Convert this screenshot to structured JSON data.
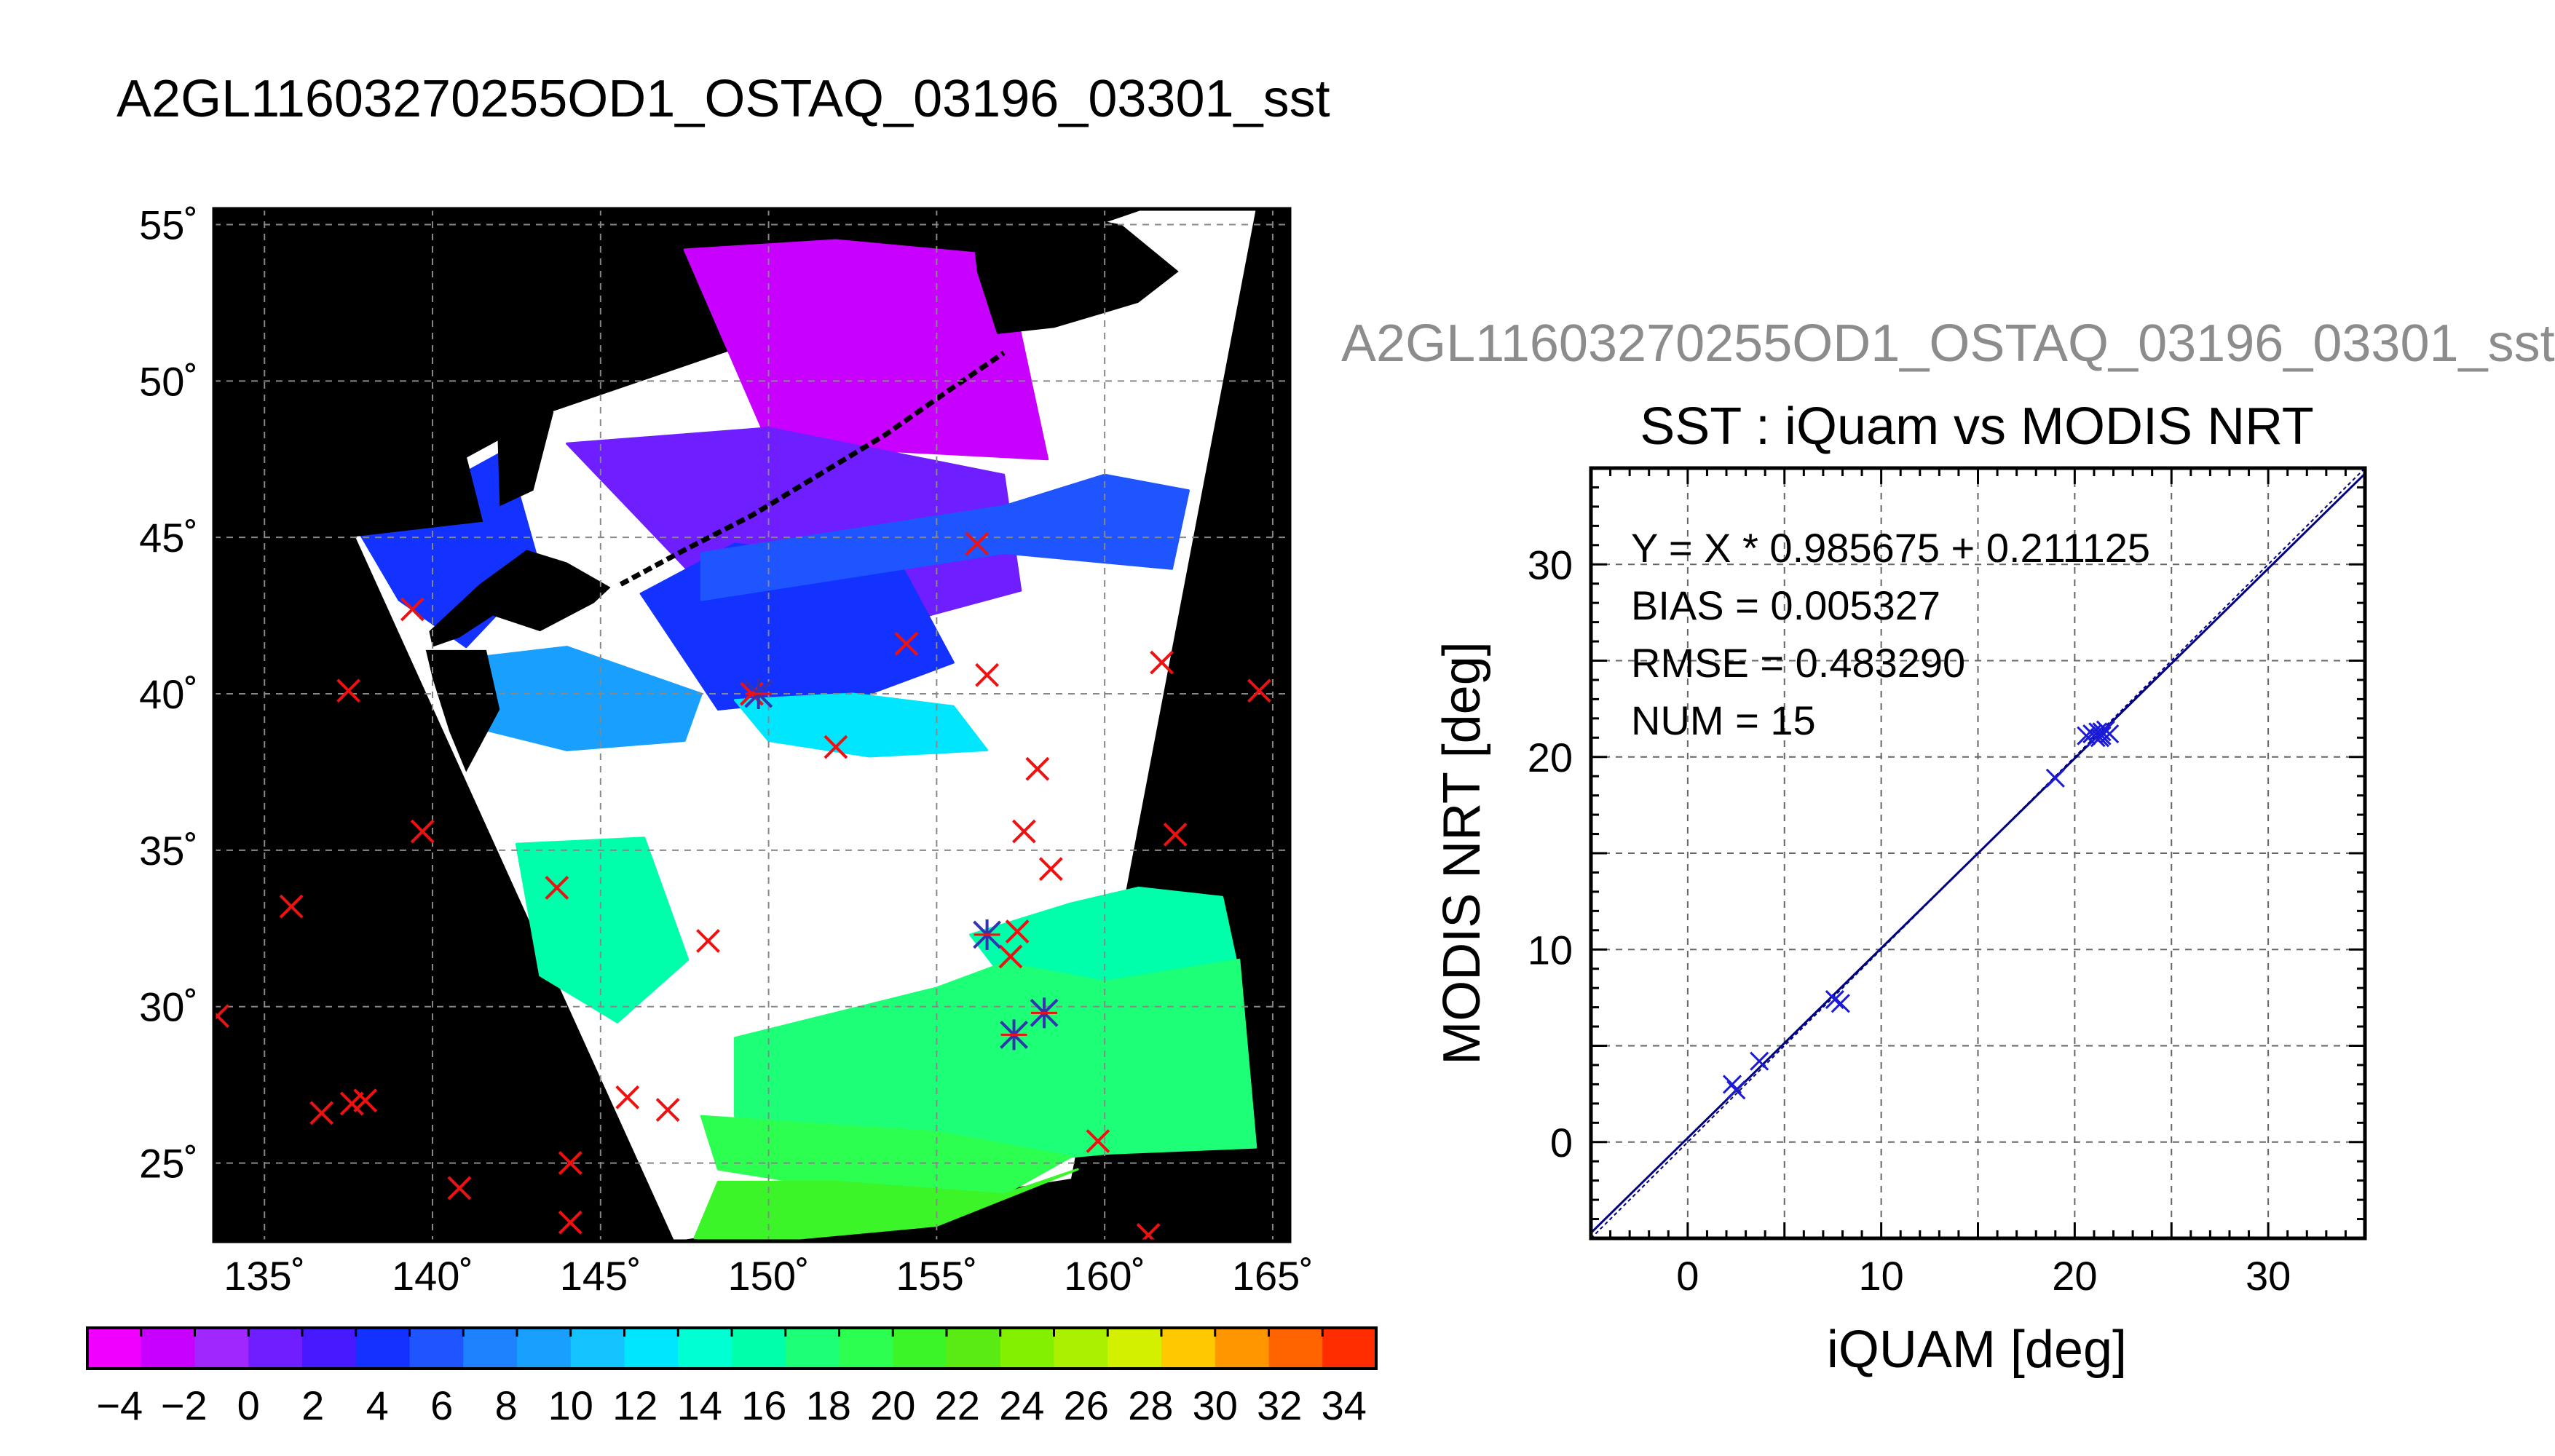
{
  "page": {
    "title": "A2GL11603270255OD1_OSTAQ_03196_03301_sst",
    "title_gray": "A2GL11603270255OD1_OSTAQ_03196_03301_sst"
  },
  "chart_data": [
    {
      "type": "map",
      "lon_range": [
        133.5,
        165.5
      ],
      "lat_range": [
        22.5,
        55.5
      ],
      "lon_ticks": [
        135,
        140,
        145,
        150,
        155,
        160,
        165
      ],
      "lat_ticks": [
        25,
        30,
        35,
        40,
        45,
        50,
        55
      ],
      "lon_tick_labels": [
        "135˚",
        "140˚",
        "145˚",
        "150˚",
        "155˚",
        "160˚",
        "165˚"
      ],
      "lat_tick_labels": [
        "25˚",
        "30˚",
        "35˚",
        "40˚",
        "45˚",
        "50˚",
        "55˚"
      ],
      "grid": true,
      "background": "#000000",
      "swath": {
        "lon": [
          137.5,
          143.5,
          161.2,
          164.5,
          159.0,
          147.2,
          137.5
        ],
        "lat": [
          45.5,
          49.0,
          55.5,
          55.5,
          24.5,
          22.5,
          45.5
        ]
      },
      "sst_regions": [
        {
          "value": -3,
          "lon": [
            147.5,
            152.0,
            157.0,
            158.3,
            153.0,
            150.0
          ],
          "lat": [
            54.2,
            54.5,
            54.0,
            47.5,
            47.8,
            48.0
          ]
        },
        {
          "value": 2,
          "lon": [
            144.0,
            150.0,
            157.0,
            157.5,
            153.0,
            148.0
          ],
          "lat": [
            48.0,
            48.5,
            47.0,
            43.3,
            42.0,
            43.5
          ]
        },
        {
          "value": 5,
          "lon": [
            137.8,
            142.2,
            143.2,
            141.0,
            139.0
          ],
          "lat": [
            45.2,
            47.8,
            44.0,
            41.5,
            43.0
          ]
        },
        {
          "value": 5,
          "lon": [
            146.2,
            149.0,
            154.0,
            155.5,
            153.0,
            148.5
          ],
          "lat": [
            43.2,
            44.8,
            44.0,
            41.0,
            40.0,
            39.5
          ]
        },
        {
          "value": 8,
          "lon": [
            148.0,
            157.0,
            160.0,
            162.5,
            162.0,
            157.0,
            148.0
          ],
          "lat": [
            44.5,
            46.0,
            47.0,
            46.5,
            44.0,
            44.5,
            43.0
          ]
        },
        {
          "value": 12,
          "lon": [
            140.0,
            144.0,
            148.0,
            147.5,
            144.0,
            141.0
          ],
          "lat": [
            41.0,
            41.5,
            40.0,
            38.5,
            38.2,
            39.0
          ]
        },
        {
          "value": 15,
          "lon": [
            149.0,
            152.5,
            155.5,
            156.5,
            153.0,
            150.0
          ],
          "lat": [
            39.8,
            40.0,
            39.6,
            38.2,
            38.0,
            38.5
          ]
        },
        {
          "value": 20,
          "lon": [
            142.5,
            146.3,
            147.6,
            145.5,
            143.2
          ],
          "lat": [
            35.2,
            35.4,
            31.5,
            29.5,
            31.0
          ]
        },
        {
          "value": 20,
          "lon": [
            156.0,
            159.0,
            161.0,
            163.5,
            164.0,
            160.5,
            157.5
          ],
          "lat": [
            32.3,
            33.3,
            33.8,
            33.5,
            31.0,
            30.5,
            30.2
          ]
        },
        {
          "value": 21,
          "lon": [
            149.0,
            152.0,
            155.0,
            157.0,
            160.0,
            164.0,
            164.5,
            160.0,
            155.0,
            150.0,
            149.0
          ],
          "lat": [
            29.0,
            29.8,
            30.6,
            31.4,
            30.8,
            31.5,
            25.5,
            25.3,
            24.8,
            25.0,
            26.5
          ]
        },
        {
          "value": 23,
          "lon": [
            148.0,
            152.0,
            155.0,
            159.0,
            157.0,
            152.0,
            148.5
          ],
          "lat": [
            26.5,
            26.2,
            26.0,
            25.2,
            24.0,
            24.2,
            24.8
          ]
        },
        {
          "value": 26,
          "lon": [
            148.5,
            152.0,
            157.0,
            159.2,
            155.0,
            150.0,
            147.8
          ],
          "lat": [
            24.4,
            24.4,
            24.0,
            24.8,
            23.0,
            22.5,
            22.6
          ]
        }
      ],
      "land": [
        {
          "name": "hokkaido",
          "lon": [
            139.9,
            141.4,
            142.8,
            144.0,
            145.3,
            144.8,
            143.2,
            141.8,
            140.8,
            140.0
          ],
          "lat": [
            42.0,
            43.5,
            44.6,
            44.2,
            43.4,
            42.9,
            42.0,
            42.5,
            41.8,
            41.5
          ]
        },
        {
          "name": "sakhalin",
          "lon": [
            141.8,
            142.7,
            142.8,
            143.6,
            143.0,
            142.0,
            141.9
          ],
          "lat": [
            54.3,
            54.1,
            51.0,
            49.0,
            46.5,
            46.0,
            49.5
          ]
        },
        {
          "name": "mainland",
          "lon": [
            133.5,
            137.0,
            139.5,
            140.5,
            140.8,
            141.5,
            133.5
          ],
          "lat": [
            55.5,
            55.5,
            53.0,
            51.0,
            48.5,
            45.5,
            44.5
          ]
        },
        {
          "name": "honshu",
          "lon": [
            139.8,
            141.6,
            142.0,
            141.0,
            140.5,
            140.0
          ],
          "lat": [
            41.4,
            41.4,
            39.5,
            37.5,
            38.8,
            40.5
          ]
        },
        {
          "name": "kamchatka",
          "lon": [
            156.0,
            158.0,
            160.5,
            162.2,
            161.0,
            158.5,
            156.8,
            156.2
          ],
          "lat": [
            55.5,
            55.5,
            55.0,
            53.5,
            52.5,
            51.7,
            51.5,
            53.5
          ]
        }
      ],
      "kurile_islands": {
        "lon": [
          145.6,
          147.5,
          149.5,
          151.5,
          153.5,
          155.5,
          157.0
        ],
        "lat": [
          43.5,
          44.6,
          45.7,
          47.0,
          48.3,
          49.8,
          50.9
        ]
      },
      "markers_red_x": {
        "lon": [
          139.4,
          137.5,
          139.7,
          135.8,
          133.6,
          136.7,
          137.6,
          138.0,
          140.8,
          144.1,
          144.1,
          143.7,
          145.8,
          147.0,
          148.2,
          154.1,
          156.2,
          156.5,
          161.7,
          164.6,
          157.6,
          158.0,
          158.4,
          157.2,
          157.4,
          162.1,
          159.8,
          161.3,
          149.5,
          152.0
        ],
        "lat": [
          42.7,
          40.1,
          35.6,
          33.2,
          29.7,
          26.6,
          26.9,
          27.0,
          24.2,
          25.0,
          23.1,
          33.8,
          27.1,
          26.7,
          32.1,
          41.6,
          44.8,
          40.6,
          41.0,
          40.1,
          35.6,
          37.6,
          34.4,
          31.6,
          32.4,
          35.5,
          25.7,
          22.7,
          40.0,
          38.3
        ]
      },
      "markers_blue_star": {
        "lon": [
          156.5,
          157.3,
          158.2,
          149.7
        ],
        "lat": [
          32.3,
          29.1,
          29.8,
          40.0
        ]
      },
      "colorbar": {
        "min": -5,
        "max": 35,
        "step": 2,
        "colors": [
          "#f000ff",
          "#c800ff",
          "#a028ff",
          "#6e1eff",
          "#4619ff",
          "#1432ff",
          "#1e55ff",
          "#1e82ff",
          "#19a0ff",
          "#14c3ff",
          "#00e6ff",
          "#00ffd2",
          "#00ffaa",
          "#1eff78",
          "#2dff50",
          "#3cf528",
          "#5aeb14",
          "#82f000",
          "#aaf000",
          "#d2f000",
          "#ffc800",
          "#ff9600",
          "#ff6400",
          "#ff2d00"
        ],
        "tick_values": [
          -4,
          -2,
          0,
          2,
          4,
          6,
          8,
          10,
          12,
          14,
          16,
          18,
          20,
          22,
          24,
          26,
          28,
          30,
          32,
          34
        ],
        "tick_labels": [
          "−4",
          "−2",
          "0",
          "2",
          "4",
          "6",
          "8",
          "10",
          "12",
          "14",
          "16",
          "18",
          "20",
          "22",
          "24",
          "26",
          "28",
          "30",
          "32",
          "34"
        ]
      }
    },
    {
      "type": "scatter",
      "title": "SST : iQuam vs MODIS NRT",
      "xlabel": "iQUAM [deg]",
      "ylabel": "MODIS NRT [deg]",
      "xlim": [
        -5,
        35
      ],
      "ylim": [
        -5,
        35
      ],
      "x_ticks": [
        0,
        10,
        20,
        30
      ],
      "y_ticks": [
        0,
        10,
        20,
        30
      ],
      "grid": true,
      "stats": [
        "Y = X * 0.985675 + 0.211125",
        "BIAS = 0.005327",
        "RMSE = 0.483290",
        "NUM = 15"
      ],
      "fit": {
        "slope": 0.985675,
        "intercept": 0.211125
      },
      "x": [
        2.3,
        2.5,
        3.7,
        7.6,
        7.9,
        19.0,
        20.6,
        20.9,
        21.1,
        21.2,
        21.4,
        21.4,
        21.6,
        21.8,
        21.3
      ],
      "y": [
        3.0,
        2.7,
        4.2,
        7.4,
        7.2,
        18.9,
        21.1,
        21.2,
        21.0,
        21.3,
        21.3,
        21.1,
        21.4,
        21.2,
        21.0
      ],
      "marker_color": "#1a1ad8",
      "line_color": "#000080"
    }
  ]
}
